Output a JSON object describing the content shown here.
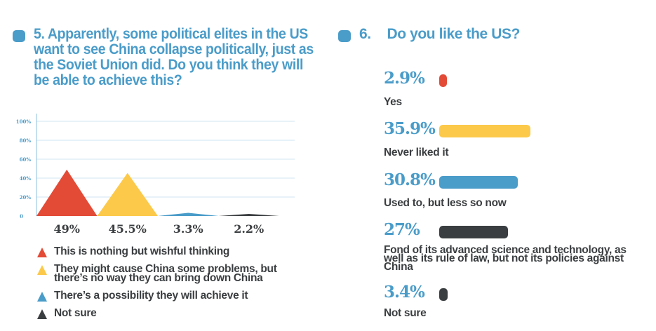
{
  "colors": {
    "accent": "#4a9cc9",
    "red": "#e34b37",
    "yellow": "#fcc94a",
    "blue": "#4a9cc9",
    "dark": "#3b3e40",
    "grid": "#cfe4f1"
  },
  "question5": {
    "title": "5. Apparently, some political elites in the US want to see China collapse politically, just as the Soviet Union did. Do you think they will be able to achieve this?"
  },
  "question6": {
    "number": "6.",
    "title": "Do you like the US?"
  },
  "chart_data": [
    {
      "type": "bar",
      "subtype": "triangle",
      "title": "5. Apparently, some political elites in the US want to see China collapse politically, just as the Soviet Union did. Do you think they will be able to achieve this?",
      "xlabel": "",
      "ylabel": "",
      "ylim": [
        0,
        100
      ],
      "yticks": [
        "0",
        "20%",
        "40%",
        "60%",
        "80%",
        "100%"
      ],
      "grid": true,
      "legend_placement": "bottom",
      "categories": [
        "This is nothing but wishful thinking",
        "They might cause China some problems, but there’s no way they can bring down China",
        "There’s a possibility they will achieve it",
        "Not sure"
      ],
      "values": [
        49,
        45.5,
        3.3,
        2.2
      ],
      "data_labels": [
        "49%",
        "45.5%",
        "3.3%",
        "2.2%"
      ],
      "colors": [
        "#e34b37",
        "#fcc94a",
        "#4a9cc9",
        "#3b3e40"
      ]
    },
    {
      "type": "bar",
      "orientation": "horizontal",
      "title": "6. Do you like the US?",
      "categories": [
        "Yes",
        "Never liked it",
        "Used to, but less so now",
        "Fond of its advanced science and technology, as well as its rule of law, but not its policies against China",
        "Not sure"
      ],
      "values": [
        2.9,
        35.9,
        30.8,
        27,
        3.4
      ],
      "data_labels": [
        "2.9%",
        "35.9%",
        "30.8%",
        "27%",
        "3.4%"
      ],
      "colors": [
        "#e34b37",
        "#fcc94a",
        "#4a9cc9",
        "#3b3e40",
        "#3b3e40"
      ]
    }
  ]
}
